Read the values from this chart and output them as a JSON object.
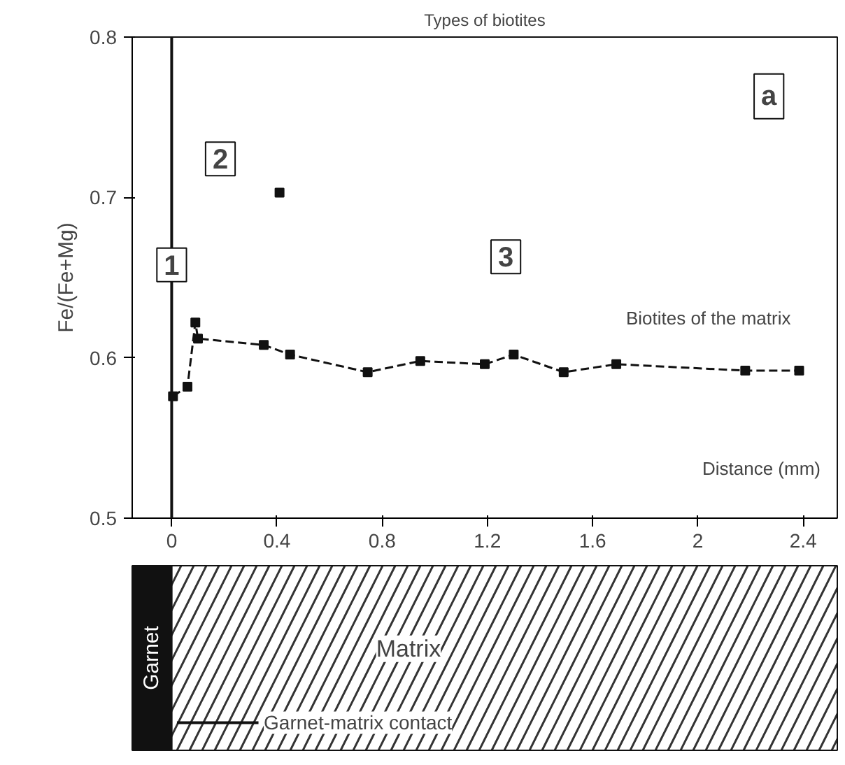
{
  "chart_data": {
    "type": "line",
    "title": "Types of biotites",
    "xlabel": "Distance (mm)",
    "ylabel": "Fe/(Fe+Mg)",
    "xlim": [
      -0.15,
      2.53
    ],
    "ylim": [
      0.5,
      0.8
    ],
    "xticks": [
      0,
      0.4,
      0.8,
      1.2,
      1.6,
      2,
      2.4
    ],
    "yticks": [
      0.5,
      0.6,
      0.7,
      0.8
    ],
    "marker": "square",
    "line_style": "dashed",
    "grid": false,
    "series": [
      {
        "color": "#111111",
        "x": [
          0.005,
          0.06,
          0.09,
          0.1,
          0.35,
          0.45,
          0.745,
          0.945,
          1.19,
          1.3,
          1.49,
          1.69,
          2.18,
          2.385
        ],
        "values": [
          0.576,
          0.582,
          0.622,
          0.612,
          0.608,
          0.602,
          0.591,
          0.598,
          0.596,
          0.602,
          0.591,
          0.596,
          0.592,
          0.592
        ]
      },
      {
        "color": "#111111",
        "x": [
          0.41
        ],
        "values": [
          0.703
        ]
      }
    ],
    "ref_lines": [
      {
        "axis": "x",
        "value": 0,
        "color": "#111111",
        "line_style": "solid"
      }
    ],
    "annotations": [
      {
        "text": "1",
        "x": 0,
        "y": 0.658
      },
      {
        "text": "2",
        "x": 0.185,
        "y": 0.724
      },
      {
        "text": "3",
        "x": 1.27,
        "y": 0.663
      },
      {
        "text": "a",
        "x": 2.27,
        "y": 0.763
      },
      "Biotites of the matrix",
      "Garnet",
      "Matrix",
      "Garnet-matrix contact"
    ]
  }
}
